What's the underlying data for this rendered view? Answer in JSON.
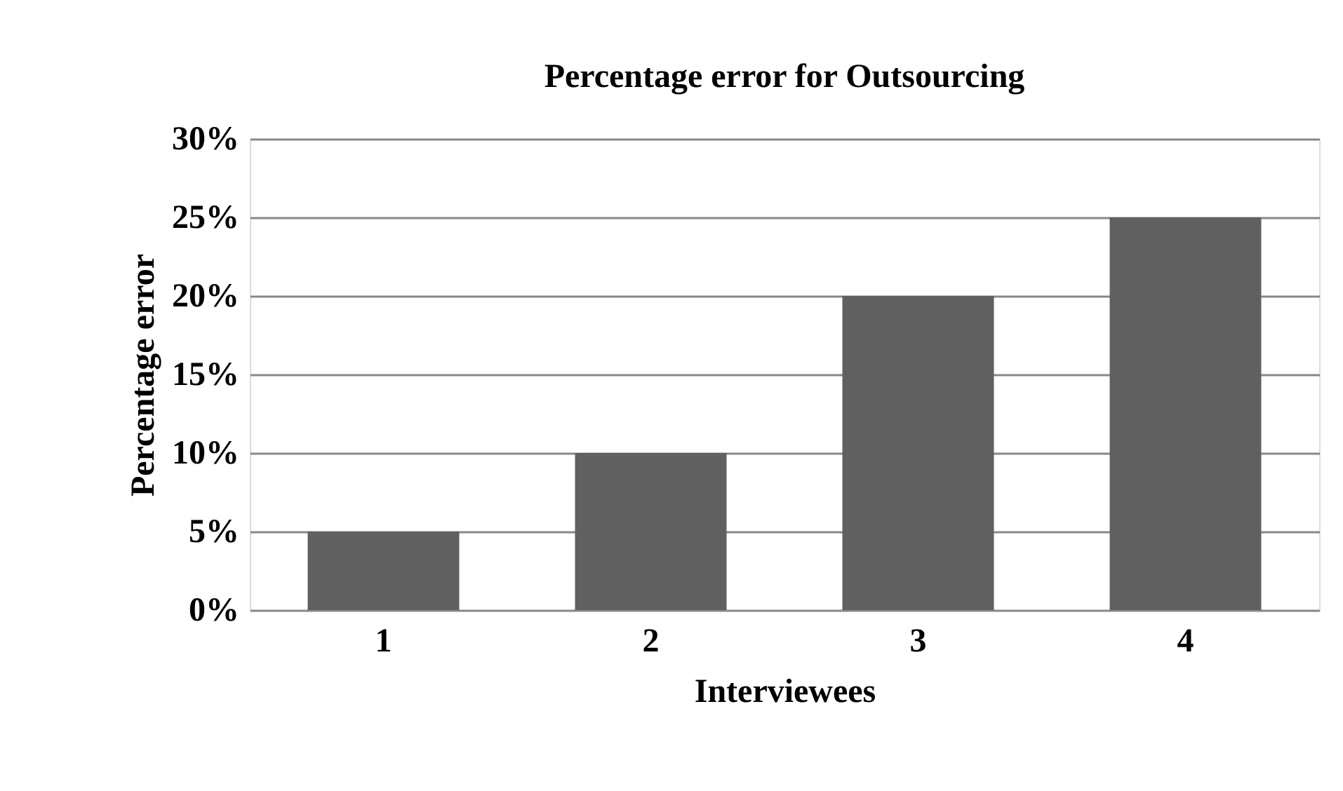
{
  "chart_data": {
    "type": "bar",
    "title": "Percentage error for Outsourcing",
    "xlabel": "Interviewees",
    "ylabel": "Percentage error",
    "categories": [
      "1",
      "2",
      "3",
      "4"
    ],
    "values": [
      5,
      10,
      20,
      25
    ],
    "color": "#606060",
    "ylim": [
      0,
      30
    ],
    "yticks": [
      {
        "value": 0,
        "label": "0%"
      },
      {
        "value": 5,
        "label": "5%"
      },
      {
        "value": 10,
        "label": "10%"
      },
      {
        "value": 15,
        "label": "15%"
      },
      {
        "value": 20,
        "label": "20%"
      },
      {
        "value": 25,
        "label": "25%"
      },
      {
        "value": 30,
        "label": "30%"
      }
    ],
    "grid": "y"
  }
}
